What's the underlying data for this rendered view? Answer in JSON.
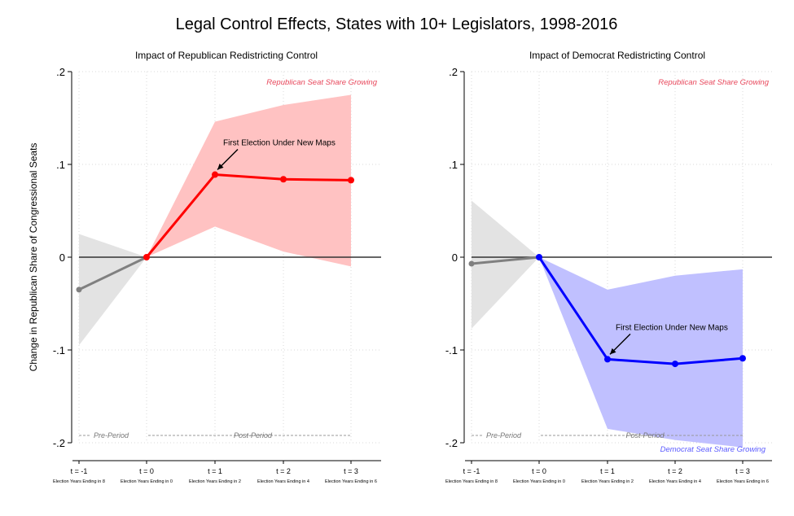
{
  "figure": {
    "title": "Legal Control Effects, States with 10+ Legislators, 1998-2016",
    "ylabel": "Change in Republican Share of Congressional Seats"
  },
  "chart_data": [
    {
      "type": "line",
      "title": "Impact of Republican Redistricting Control",
      "ylabel": "Change in Republican Share of Congressional Seats",
      "ylim": [
        -0.2,
        0.2
      ],
      "yticks": [
        -0.2,
        -0.1,
        0,
        0.1,
        0.2
      ],
      "ytick_labels": [
        "-.2",
        "-.1",
        "0",
        ".1",
        ".2"
      ],
      "categories": [
        "t = -1",
        "t = 0",
        "t = 1",
        "t = 2",
        "t = 3"
      ],
      "sublabels": [
        "Election Years Ending in 8",
        "Election Years Ending in 0",
        "Election Years Ending in 2",
        "Election Years Ending in 4",
        "Election Years Ending in 6"
      ],
      "grid": true,
      "pre": {
        "x": [
          0,
          1
        ],
        "values": [
          -0.035,
          0
        ],
        "lower": [
          -0.095,
          0
        ],
        "upper": [
          0.025,
          0
        ],
        "color": "#808080",
        "band_color": "#e3e3e3"
      },
      "post": {
        "x": [
          1,
          2,
          3,
          4
        ],
        "values": [
          0,
          0.089,
          0.084,
          0.083
        ],
        "lower": [
          0,
          0.033,
          0.006,
          -0.01
        ],
        "upper": [
          0,
          0.146,
          0.164,
          0.175
        ],
        "color": "#ff0000",
        "band_color": "#ffc2c2"
      },
      "annotations": {
        "top": "Republican Seat Share Growing",
        "bottom": "",
        "pre_period": "Pre-Period",
        "post_period": "Post-Period",
        "arrow_text": "First Election Under New Maps"
      }
    },
    {
      "type": "line",
      "title": "Impact of Democrat Redistricting Control",
      "ylabel": "",
      "ylim": [
        -0.2,
        0.2
      ],
      "yticks": [
        -0.2,
        -0.1,
        0,
        0.1,
        0.2
      ],
      "ytick_labels": [
        "-.2",
        "-.1",
        "0",
        ".1",
        ".2"
      ],
      "categories": [
        "t = -1",
        "t = 0",
        "t = 1",
        "t = 2",
        "t = 3"
      ],
      "sublabels": [
        "Election Years Ending in 8",
        "Election Years Ending in 0",
        "Election Years Ending in 2",
        "Election Years Ending in 4",
        "Election Years Ending in 6"
      ],
      "grid": true,
      "pre": {
        "x": [
          0,
          1
        ],
        "values": [
          -0.007,
          0
        ],
        "lower": [
          -0.077,
          0
        ],
        "upper": [
          0.061,
          0
        ],
        "color": "#808080",
        "band_color": "#e3e3e3"
      },
      "post": {
        "x": [
          1,
          2,
          3,
          4
        ],
        "values": [
          0,
          -0.11,
          -0.115,
          -0.109
        ],
        "lower": [
          0,
          -0.185,
          -0.197,
          -0.205
        ],
        "upper": [
          0,
          -0.035,
          -0.02,
          -0.013
        ],
        "color": "#0000ff",
        "band_color": "#c0c0ff"
      },
      "annotations": {
        "top": "Republican Seat Share Growing",
        "bottom": "Democrat Seat Share Growing",
        "pre_period": "Pre-Period",
        "post_period": "Post-Period",
        "arrow_text": "First Election Under New Maps"
      }
    }
  ],
  "colors": {
    "republican": "#ff0000",
    "democrat": "#0000ff",
    "republican_label": "#e8485c",
    "democrat_label": "#5c5cff",
    "pre": "#808080"
  }
}
